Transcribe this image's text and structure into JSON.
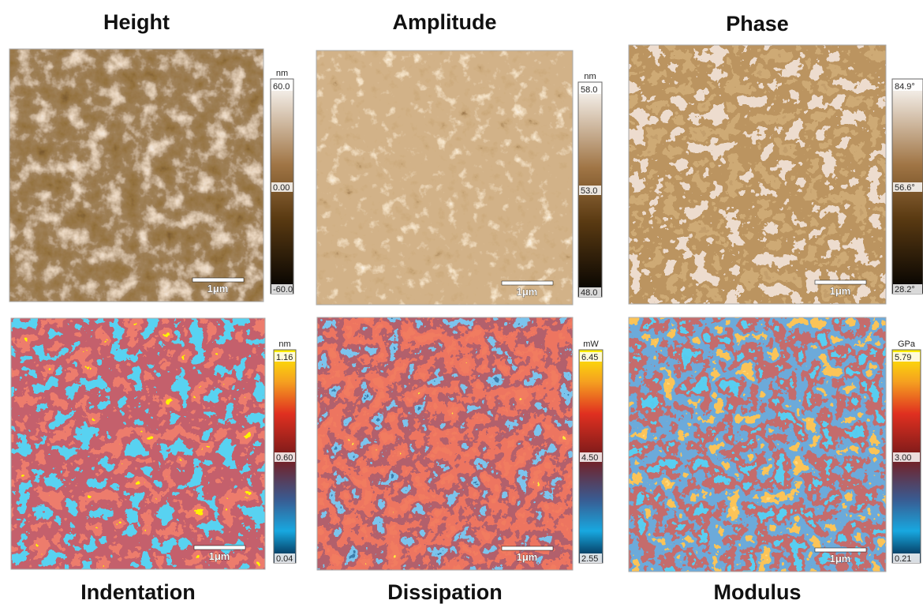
{
  "panels": [
    {
      "title": "Height",
      "unit": "nm",
      "max": "60.0",
      "mid": "0.00",
      "min": "-60.0",
      "scale": "1μm"
    },
    {
      "title": "Amplitude",
      "unit": "nm",
      "max": "58.0",
      "mid": "53.0",
      "min": "48.0",
      "scale": "1μm"
    },
    {
      "title": "Phase",
      "max": "84.9°",
      "mid": "56.6°",
      "min": "28.2°",
      "scale": "1μm"
    },
    {
      "title": "Indentation",
      "unit": "nm",
      "max": "1.16",
      "mid": "0.60",
      "min": "0.04",
      "scale": "1μm"
    },
    {
      "title": "Dissipation",
      "unit": "mW",
      "max": "6.45",
      "mid": "4.50",
      "min": "2.55",
      "scale": "1μm"
    },
    {
      "title": "Modulus",
      "unit": "GPa",
      "max": "5.79",
      "mid": "3.00",
      "min": "0.21",
      "scale": "1μm"
    }
  ]
}
